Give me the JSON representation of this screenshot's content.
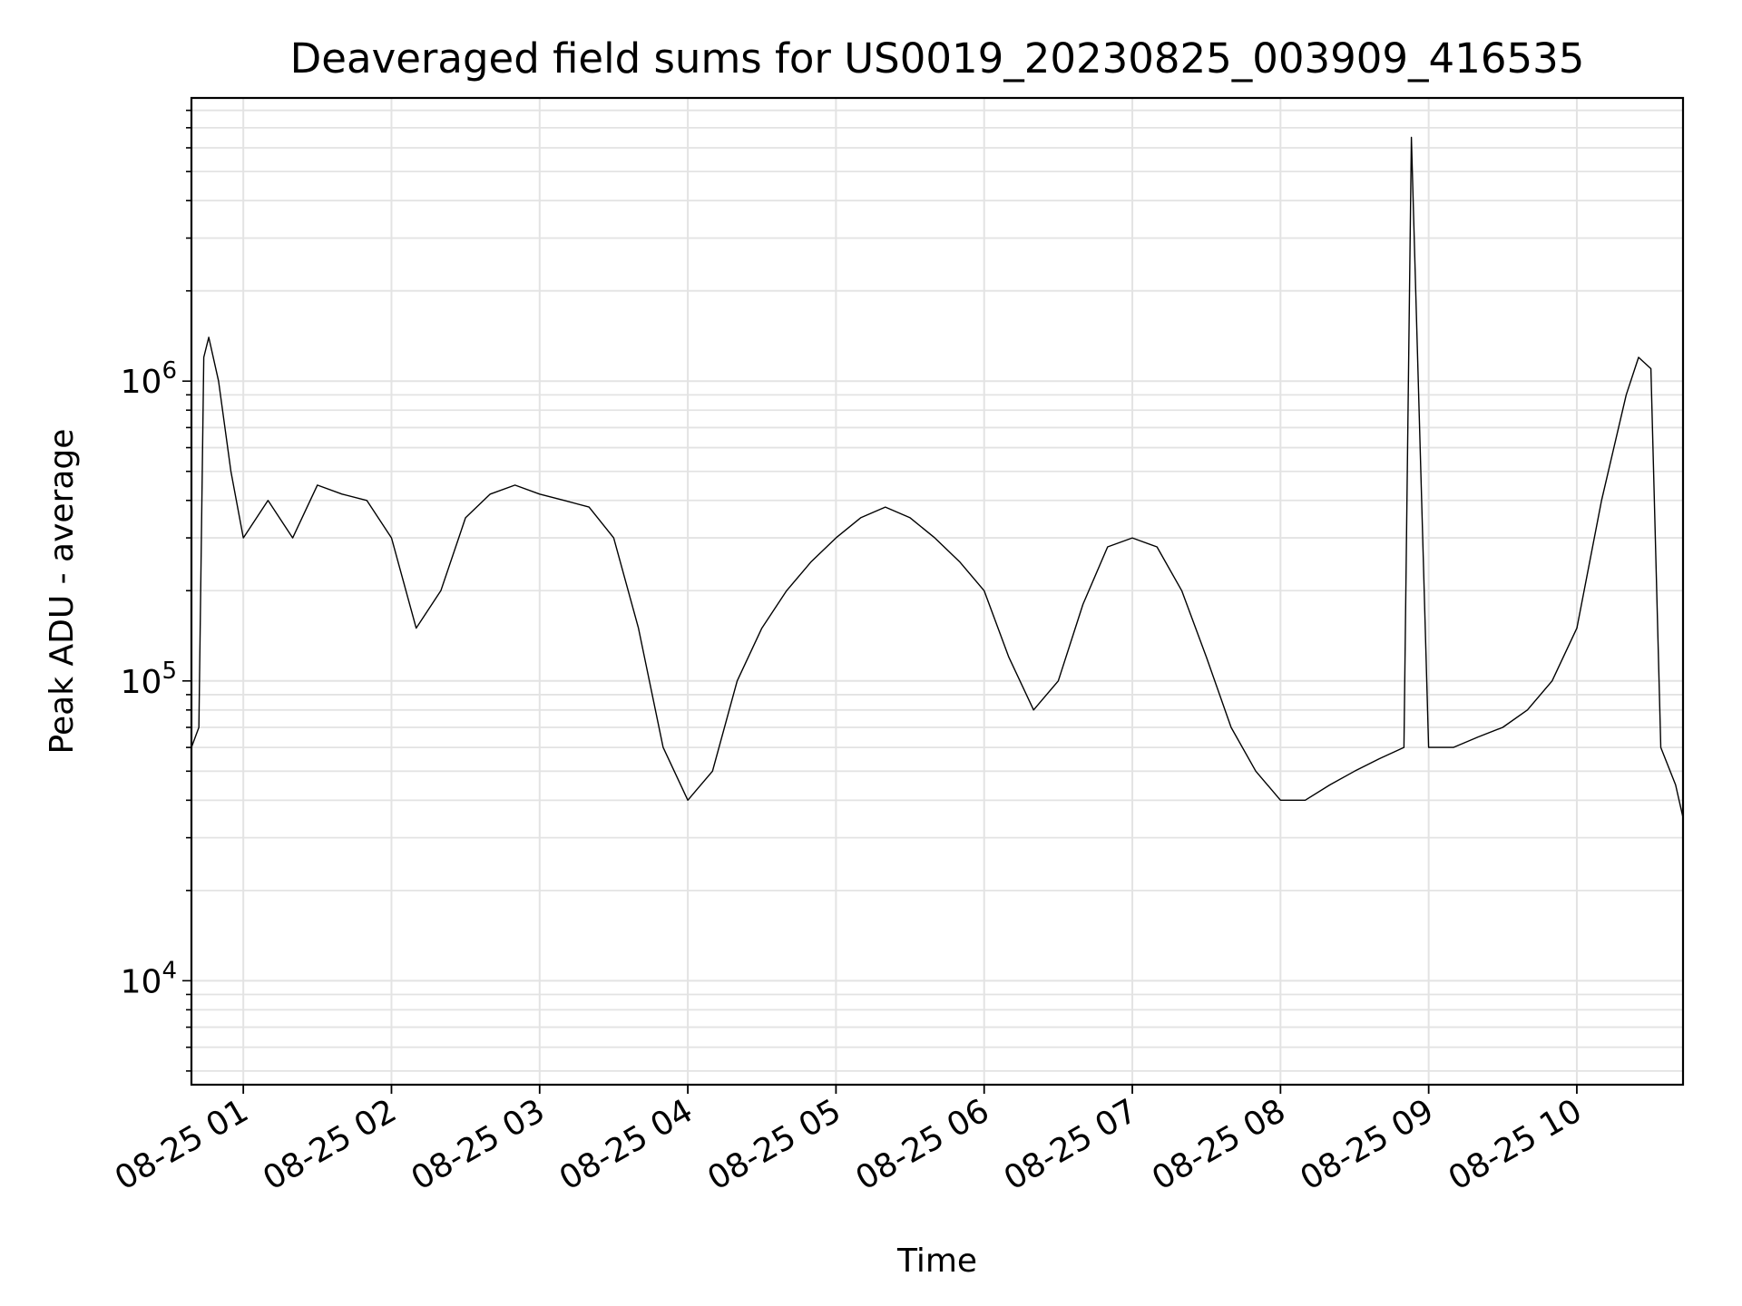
{
  "chart_data": {
    "type": "line",
    "title": "Deaveraged field sums for US0019_20230825_003909_416535",
    "xlabel": "Time",
    "ylabel": "Peak ADU - average",
    "yscale": "log",
    "grid": true,
    "legend": "none",
    "line_color": "#000000",
    "x_range": [
      "2023-08-25 00:39",
      "2023-08-25 10:43"
    ],
    "ylim": [
      4500,
      8800000
    ],
    "x_ticks": [
      {
        "time": "2023-08-25 01:00",
        "label": "08-25 01"
      },
      {
        "time": "2023-08-25 02:00",
        "label": "08-25 02"
      },
      {
        "time": "2023-08-25 03:00",
        "label": "08-25 03"
      },
      {
        "time": "2023-08-25 04:00",
        "label": "08-25 04"
      },
      {
        "time": "2023-08-25 05:00",
        "label": "08-25 05"
      },
      {
        "time": "2023-08-25 06:00",
        "label": "08-25 06"
      },
      {
        "time": "2023-08-25 07:00",
        "label": "08-25 07"
      },
      {
        "time": "2023-08-25 08:00",
        "label": "08-25 08"
      },
      {
        "time": "2023-08-25 09:00",
        "label": "08-25 09"
      },
      {
        "time": "2023-08-25 10:00",
        "label": "08-25 10"
      }
    ],
    "y_ticks": [
      {
        "value": 10000,
        "base": "10",
        "exp": "4"
      },
      {
        "value": 100000,
        "base": "10",
        "exp": "5"
      },
      {
        "value": 1000000,
        "base": "10",
        "exp": "6"
      }
    ],
    "series": [
      {
        "points": [
          [
            "2023-08-25 00:39",
            60000
          ],
          [
            "2023-08-25 00:42",
            70000
          ],
          [
            "2023-08-25 00:44",
            1200000
          ],
          [
            "2023-08-25 00:46",
            1400000
          ],
          [
            "2023-08-25 00:50",
            1000000
          ],
          [
            "2023-08-25 00:55",
            500000
          ],
          [
            "2023-08-25 01:00",
            300000
          ],
          [
            "2023-08-25 01:10",
            400000
          ],
          [
            "2023-08-25 01:20",
            300000
          ],
          [
            "2023-08-25 01:30",
            450000
          ],
          [
            "2023-08-25 01:40",
            420000
          ],
          [
            "2023-08-25 01:50",
            400000
          ],
          [
            "2023-08-25 02:00",
            300000
          ],
          [
            "2023-08-25 02:10",
            150000
          ],
          [
            "2023-08-25 02:20",
            200000
          ],
          [
            "2023-08-25 02:30",
            350000
          ],
          [
            "2023-08-25 02:40",
            420000
          ],
          [
            "2023-08-25 02:50",
            450000
          ],
          [
            "2023-08-25 03:00",
            420000
          ],
          [
            "2023-08-25 03:10",
            400000
          ],
          [
            "2023-08-25 03:20",
            380000
          ],
          [
            "2023-08-25 03:30",
            300000
          ],
          [
            "2023-08-25 03:40",
            150000
          ],
          [
            "2023-08-25 03:50",
            60000
          ],
          [
            "2023-08-25 04:00",
            40000
          ],
          [
            "2023-08-25 04:10",
            50000
          ],
          [
            "2023-08-25 04:20",
            100000
          ],
          [
            "2023-08-25 04:30",
            150000
          ],
          [
            "2023-08-25 04:40",
            200000
          ],
          [
            "2023-08-25 04:50",
            250000
          ],
          [
            "2023-08-25 05:00",
            300000
          ],
          [
            "2023-08-25 05:10",
            350000
          ],
          [
            "2023-08-25 05:20",
            380000
          ],
          [
            "2023-08-25 05:30",
            350000
          ],
          [
            "2023-08-25 05:40",
            300000
          ],
          [
            "2023-08-25 05:50",
            250000
          ],
          [
            "2023-08-25 06:00",
            200000
          ],
          [
            "2023-08-25 06:10",
            120000
          ],
          [
            "2023-08-25 06:20",
            80000
          ],
          [
            "2023-08-25 06:30",
            100000
          ],
          [
            "2023-08-25 06:40",
            180000
          ],
          [
            "2023-08-25 06:50",
            280000
          ],
          [
            "2023-08-25 07:00",
            300000
          ],
          [
            "2023-08-25 07:10",
            280000
          ],
          [
            "2023-08-25 07:20",
            200000
          ],
          [
            "2023-08-25 07:30",
            120000
          ],
          [
            "2023-08-25 07:40",
            70000
          ],
          [
            "2023-08-25 07:50",
            50000
          ],
          [
            "2023-08-25 08:00",
            40000
          ],
          [
            "2023-08-25 08:10",
            40000
          ],
          [
            "2023-08-25 08:20",
            45000
          ],
          [
            "2023-08-25 08:30",
            50000
          ],
          [
            "2023-08-25 08:40",
            55000
          ],
          [
            "2023-08-25 08:50",
            60000
          ],
          [
            "2023-08-25 08:53",
            6500000
          ],
          [
            "2023-08-25 09:00",
            60000
          ],
          [
            "2023-08-25 09:10",
            60000
          ],
          [
            "2023-08-25 09:20",
            65000
          ],
          [
            "2023-08-25 09:30",
            70000
          ],
          [
            "2023-08-25 09:40",
            80000
          ],
          [
            "2023-08-25 09:50",
            100000
          ],
          [
            "2023-08-25 10:00",
            150000
          ],
          [
            "2023-08-25 10:10",
            400000
          ],
          [
            "2023-08-25 10:20",
            900000
          ],
          [
            "2023-08-25 10:25",
            1200000
          ],
          [
            "2023-08-25 10:30",
            1100000
          ],
          [
            "2023-08-25 10:34",
            60000
          ],
          [
            "2023-08-25 10:40",
            45000
          ],
          [
            "2023-08-25 10:43",
            35000
          ]
        ]
      }
    ]
  }
}
